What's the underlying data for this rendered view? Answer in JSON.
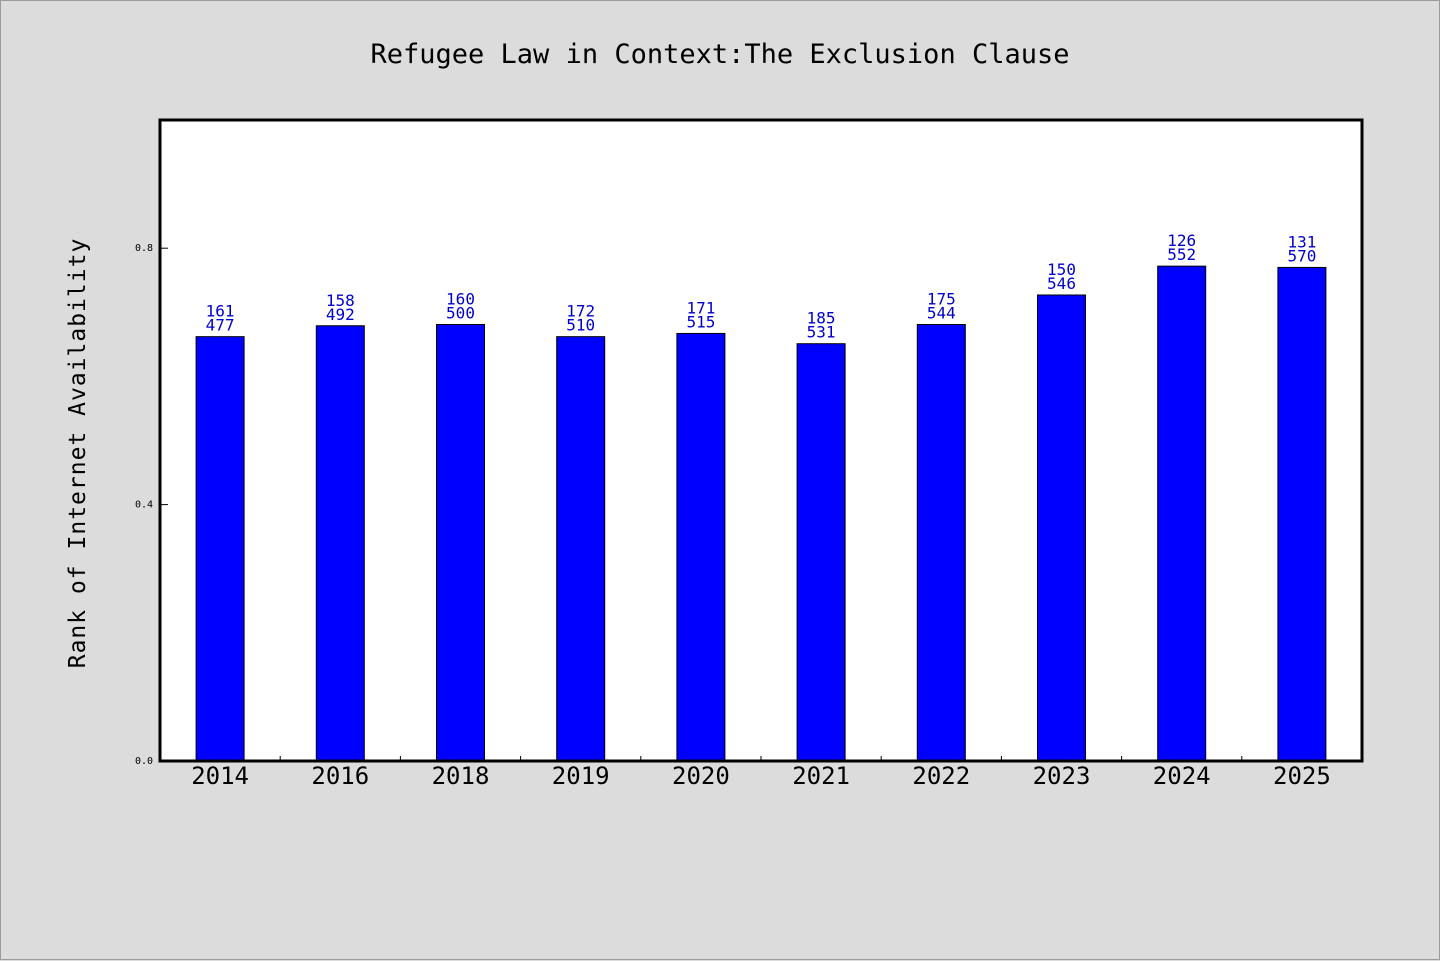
{
  "chart_data": {
    "type": "bar",
    "title": "Refugee Law in Context:The Exclusion Clause",
    "xlabel": "",
    "ylabel": "Rank of Internet Availability",
    "categories": [
      "2014",
      "2016",
      "2018",
      "2019",
      "2020",
      "2021",
      "2022",
      "2023",
      "2024",
      "2025"
    ],
    "values": [
      0.662,
      0.679,
      0.681,
      0.662,
      0.667,
      0.651,
      0.681,
      0.727,
      0.772,
      0.77
    ],
    "label_top": [
      "161",
      "158",
      "160",
      "172",
      "171",
      "185",
      "175",
      "150",
      "126",
      "131"
    ],
    "label_bottom": [
      "477",
      "492",
      "500",
      "510",
      "515",
      "531",
      "544",
      "546",
      "552",
      "570"
    ],
    "ylim": [
      0,
      1.0
    ],
    "yticks": [
      "0.0",
      "0.4",
      "0.8"
    ],
    "grid": false,
    "bar_color": "#0000ff",
    "label_color": "#0000cc",
    "background": "#dcdcdc",
    "plot_background": "#ffffff"
  }
}
